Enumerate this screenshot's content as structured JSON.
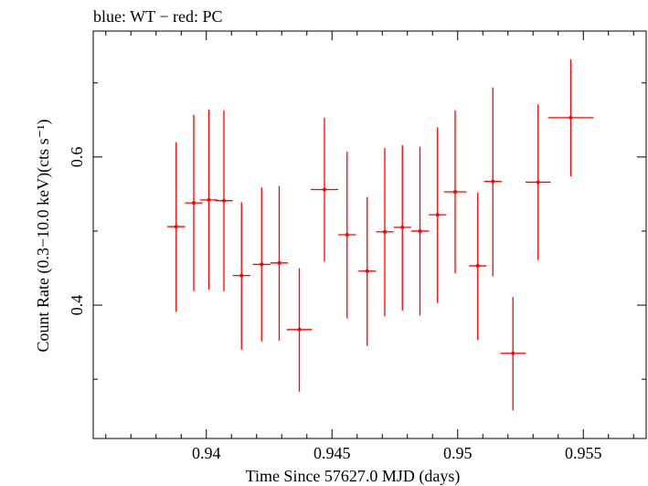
{
  "chart_data": {
    "type": "scatter",
    "title": "blue: WT − red: PC",
    "xlabel": "Time Since 57627.0 MJD (days)",
    "ylabel": "Count Rate (0.3−10.0 keV)(cts s⁻¹)",
    "xlim": [
      0.9355,
      0.9575
    ],
    "ylim": [
      0.22,
      0.77
    ],
    "x_ticks": [
      {
        "value": 0.94,
        "label": "0.94"
      },
      {
        "value": 0.945,
        "label": "0.945"
      },
      {
        "value": 0.95,
        "label": "0.95"
      },
      {
        "value": 0.955,
        "label": "0.955"
      }
    ],
    "x_minor_step": 0.001,
    "y_ticks": [
      {
        "value": 0.4,
        "label": "0.4"
      },
      {
        "value": 0.6,
        "label": "0.6"
      }
    ],
    "y_minor_ticks": [
      0.3,
      0.5,
      0.7
    ],
    "grid": false,
    "series": [
      {
        "color": "#ff0000",
        "points": [
          {
            "x": 0.9388,
            "y": 0.506,
            "xerr": 0.00035,
            "ylo": 0.391,
            "yhi": 0.62
          },
          {
            "x": 0.9395,
            "y": 0.538,
            "xerr": 0.00035,
            "ylo": 0.419,
            "yhi": 0.657
          },
          {
            "x": 0.9401,
            "y": 0.542,
            "xerr": 0.00035,
            "ylo": 0.421,
            "yhi": 0.664
          },
          {
            "x": 0.9407,
            "y": 0.541,
            "xerr": 0.00035,
            "ylo": 0.419,
            "yhi": 0.663
          },
          {
            "x": 0.9414,
            "y": 0.44,
            "xerr": 0.00035,
            "ylo": 0.34,
            "yhi": 0.539
          },
          {
            "x": 0.9422,
            "y": 0.455,
            "xerr": 0.00035,
            "ylo": 0.351,
            "yhi": 0.559
          },
          {
            "x": 0.9429,
            "y": 0.457,
            "xerr": 0.00035,
            "ylo": 0.352,
            "yhi": 0.561
          },
          {
            "x": 0.9437,
            "y": 0.367,
            "xerr": 0.0005,
            "ylo": 0.283,
            "yhi": 0.45
          },
          {
            "x": 0.9447,
            "y": 0.556,
            "xerr": 0.00055,
            "ylo": 0.459,
            "yhi": 0.653
          },
          {
            "x": 0.9456,
            "y": 0.495,
            "xerr": 0.00035,
            "ylo": 0.382,
            "yhi": 0.607
          },
          {
            "x": 0.9464,
            "y": 0.446,
            "xerr": 0.00035,
            "ylo": 0.345,
            "yhi": 0.546
          },
          {
            "x": 0.9471,
            "y": 0.499,
            "xerr": 0.00035,
            "ylo": 0.385,
            "yhi": 0.612
          },
          {
            "x": 0.9478,
            "y": 0.505,
            "xerr": 0.00035,
            "ylo": 0.393,
            "yhi": 0.616
          },
          {
            "x": 0.9485,
            "y": 0.5,
            "xerr": 0.00035,
            "ylo": 0.386,
            "yhi": 0.614
          },
          {
            "x": 0.9492,
            "y": 0.522,
            "xerr": 0.00035,
            "ylo": 0.403,
            "yhi": 0.64
          },
          {
            "x": 0.9499,
            "y": 0.553,
            "xerr": 0.00045,
            "ylo": 0.443,
            "yhi": 0.663
          },
          {
            "x": 0.9508,
            "y": 0.453,
            "xerr": 0.00035,
            "ylo": 0.353,
            "yhi": 0.552
          },
          {
            "x": 0.9514,
            "y": 0.567,
            "xerr": 0.00035,
            "ylo": 0.439,
            "yhi": 0.694
          },
          {
            "x": 0.9522,
            "y": 0.335,
            "xerr": 0.0005,
            "ylo": 0.258,
            "yhi": 0.411
          },
          {
            "x": 0.9532,
            "y": 0.566,
            "xerr": 0.0005,
            "ylo": 0.461,
            "yhi": 0.671
          },
          {
            "x": 0.9545,
            "y": 0.653,
            "xerr": 0.0009,
            "ylo": 0.574,
            "yhi": 0.732
          }
        ]
      }
    ]
  }
}
